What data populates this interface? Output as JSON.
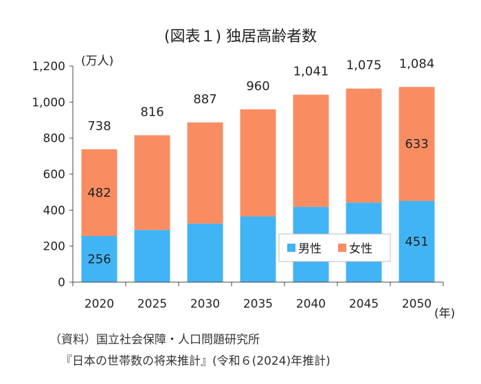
{
  "chart_data": {
    "type": "bar",
    "stacked": true,
    "title": "(図表１) 独居高齢者数",
    "ylabel": "(万人)",
    "xlabel": "(年)",
    "categories": [
      "2020",
      "2025",
      "2030",
      "2035",
      "2040",
      "2045",
      "2050"
    ],
    "series": [
      {
        "name": "男性",
        "color": "#41b4f5",
        "values": [
          256,
          290,
          325,
          365,
          418,
          442,
          451
        ]
      },
      {
        "name": "女性",
        "color": "#f98d61",
        "values": [
          482,
          526,
          562,
          595,
          623,
          633,
          633
        ]
      }
    ],
    "totals": [
      "738",
      "816",
      "887",
      "960",
      "1,041",
      "1,075",
      "1,084"
    ],
    "segment_labels": [
      {
        "category": "2020",
        "series": "男性",
        "text": "256"
      },
      {
        "category": "2020",
        "series": "女性",
        "text": "482"
      },
      {
        "category": "2050",
        "series": "男性",
        "text": "451"
      },
      {
        "category": "2050",
        "series": "女性",
        "text": "633"
      }
    ],
    "yticks": [
      0,
      200,
      400,
      600,
      800,
      1000,
      1200
    ],
    "ytick_labels": [
      "0",
      "200",
      "400",
      "600",
      "800",
      "1,000",
      "1,200"
    ],
    "ylim": [
      0,
      1200
    ],
    "legend": {
      "position": "inside-bottom-right",
      "entries": [
        "男性",
        "女性"
      ]
    },
    "grid": false
  },
  "source": {
    "line1": "（資料）国立社会保障・人口問題研究所",
    "line2": "『日本の世帯数の将来推計』(令和６(2024)年推計)"
  }
}
